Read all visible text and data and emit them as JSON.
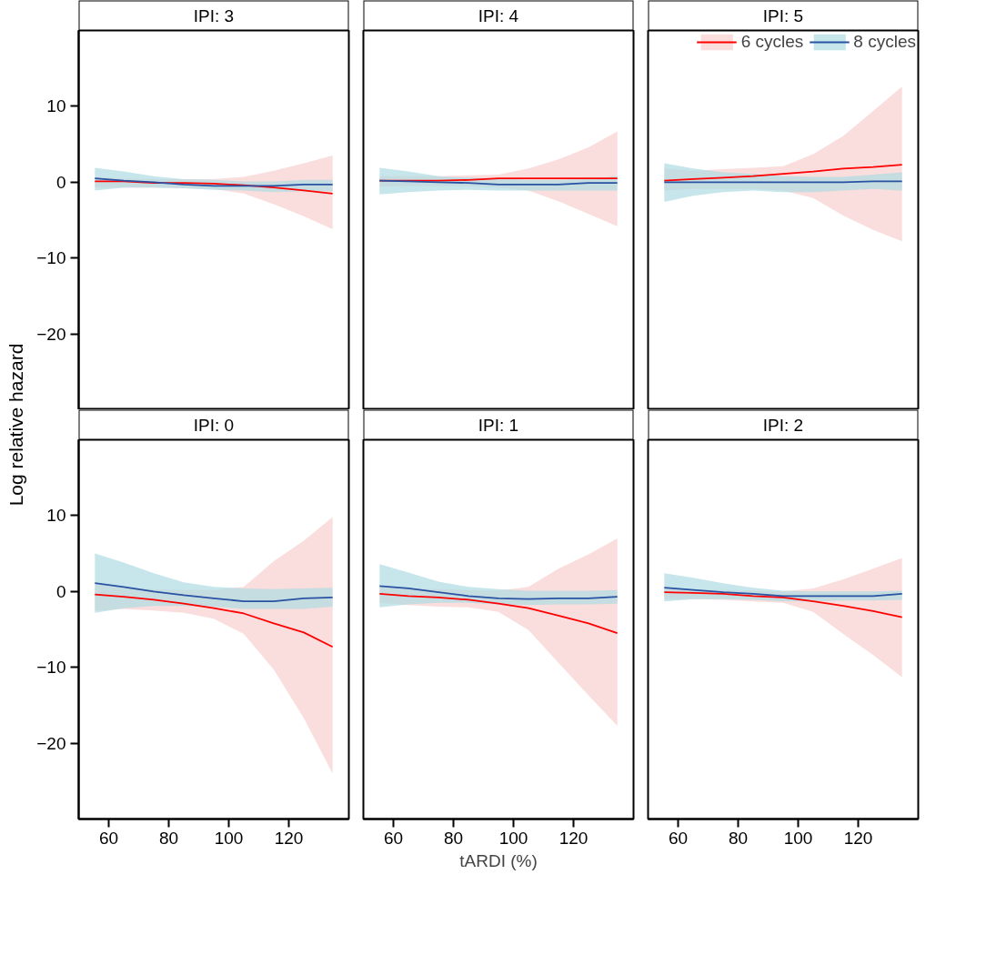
{
  "chart_data": [
    {
      "type": "line",
      "title": "IPI: 3",
      "ylabel": "Log relative hazard",
      "tick_labels": "y",
      "x": [
        55.4,
        65,
        75,
        85,
        95,
        105,
        115,
        125,
        134.6
      ],
      "xlim": [
        50,
        140
      ],
      "xticks": [
        60,
        80,
        100,
        120
      ],
      "ylim": [
        -30,
        20
      ],
      "yticks": [
        -20,
        -10,
        0,
        10
      ],
      "series": [
        {
          "color": "#ff0000",
          "values": [
            0.1,
            0.1,
            -0.1,
            -0.1,
            -0.2,
            -0.4,
            -0.7,
            -1.1,
            -1.5
          ],
          "lower": [
            -0.7,
            -0.7,
            -0.7,
            -0.8,
            -0.9,
            -1.5,
            -2.9,
            -4.5,
            -6.2
          ],
          "upper": [
            0.7,
            0.5,
            0.4,
            0.4,
            0.4,
            0.7,
            1.5,
            2.5,
            3.5
          ]
        },
        {
          "color": "#2952a3",
          "values": [
            0.5,
            0.2,
            0,
            -0.3,
            -0.5,
            -0.5,
            -0.5,
            -0.3,
            -0.3
          ],
          "lower": [
            -1.1,
            -0.7,
            -0.7,
            -0.8,
            -1.0,
            -1.1,
            -1.3,
            -1.2,
            -1.2
          ],
          "upper": [
            1.9,
            1.4,
            0.8,
            0.4,
            0.3,
            0.1,
            0.1,
            0.3,
            0.3
          ]
        }
      ]
    },
    {
      "type": "line",
      "title": "IPI: 4",
      "tick_labels": false,
      "x": [
        55.4,
        65,
        75,
        85,
        95,
        105,
        115,
        125,
        134.6
      ],
      "xlim": [
        50,
        140
      ],
      "xticks": [
        60,
        80,
        100,
        120
      ],
      "ylim": [
        -30,
        20
      ],
      "yticks": [
        -20,
        -10,
        0,
        10
      ],
      "series": [
        {
          "color": "#ff0000",
          "values": [
            0.2,
            0.2,
            0.2,
            0.3,
            0.5,
            0.5,
            0.5,
            0.5,
            0.5
          ],
          "lower": [
            -0.6,
            -0.5,
            -0.5,
            -0.5,
            -0.7,
            -1.1,
            -2.5,
            -4.2,
            -5.8
          ],
          "upper": [
            0.8,
            0.8,
            0.8,
            0.9,
            1.0,
            1.8,
            3.0,
            4.6,
            6.7
          ]
        },
        {
          "color": "#2952a3",
          "values": [
            0.2,
            0.1,
            0,
            -0.1,
            -0.3,
            -0.3,
            -0.3,
            -0.1,
            -0.1
          ],
          "lower": [
            -1.6,
            -1.3,
            -1.1,
            -1.0,
            -1.1,
            -1.1,
            -1.1,
            -1.1,
            -1.1
          ],
          "upper": [
            1.9,
            1.4,
            0.8,
            0.6,
            0.5,
            0.3,
            0.3,
            0.4,
            0.8
          ]
        }
      ]
    },
    {
      "type": "line",
      "title": "IPI: 5",
      "tick_labels": false,
      "legend": "top right",
      "x": [
        55.4,
        65,
        75,
        85,
        95,
        105,
        115,
        125,
        134.6
      ],
      "xlim": [
        50,
        140
      ],
      "xticks": [
        60,
        80,
        100,
        120
      ],
      "ylim": [
        -30,
        20
      ],
      "yticks": [
        -20,
        -10,
        0,
        10
      ],
      "series": [
        {
          "name": "6 cycles",
          "color": "#ff0000",
          "values": [
            0.2,
            0.4,
            0.6,
            0.8,
            1.1,
            1.4,
            1.8,
            2.0,
            2.3
          ],
          "lower": [
            -1.1,
            -0.9,
            -0.9,
            -0.9,
            -1.1,
            -2.1,
            -4.4,
            -6.3,
            -7.8
          ],
          "upper": [
            1.8,
            1.5,
            1.7,
            1.9,
            2.1,
            3.7,
            6.1,
            9.4,
            12.6
          ]
        },
        {
          "name": "8 cycles",
          "color": "#2952a3",
          "values": [
            0,
            0,
            0,
            0,
            0,
            0,
            0,
            0.1,
            0.1
          ],
          "lower": [
            -2.6,
            -1.8,
            -1.3,
            -1.1,
            -1.3,
            -1.3,
            -1.1,
            -0.9,
            -1.1
          ],
          "upper": [
            2.5,
            1.8,
            1.3,
            1.1,
            0.8,
            0.7,
            0.7,
            1.0,
            1.3
          ]
        }
      ]
    },
    {
      "type": "line",
      "title": "IPI: 0",
      "x": [
        55.4,
        65,
        75,
        85,
        95,
        105,
        115,
        125,
        134.6
      ],
      "xlim": [
        50,
        140
      ],
      "xticks": [
        60,
        80,
        100,
        120
      ],
      "ylim": [
        -30,
        20
      ],
      "yticks": [
        -20,
        -10,
        0,
        10
      ],
      "series": [
        {
          "color": "#ff0000",
          "values": [
            -0.4,
            -0.7,
            -1.1,
            -1.6,
            -2.2,
            -2.9,
            -4.2,
            -5.4,
            -7.3
          ],
          "lower": [
            -2.5,
            -2.3,
            -2.5,
            -2.8,
            -3.6,
            -5.6,
            -10.3,
            -16.7,
            -24.0
          ],
          "upper": [
            1.0,
            0.5,
            0.3,
            0.2,
            0.2,
            0.6,
            4.0,
            6.7,
            9.8
          ]
        },
        {
          "color": "#2952a3",
          "values": [
            1.1,
            0.6,
            0,
            -0.5,
            -0.9,
            -1.3,
            -1.3,
            -0.9,
            -0.8
          ],
          "lower": [
            -2.8,
            -2.2,
            -1.9,
            -1.9,
            -2.0,
            -2.3,
            -2.3,
            -2.3,
            -2.0
          ],
          "upper": [
            5.0,
            3.8,
            2.4,
            1.2,
            0.6,
            0.4,
            0.3,
            0.4,
            0.5
          ]
        }
      ]
    },
    {
      "type": "line",
      "title": "IPI: 1",
      "xlabel": "tARDI (%)",
      "tick_labels": "x",
      "x": [
        55.4,
        65,
        75,
        85,
        95,
        105,
        115,
        125,
        134.6
      ],
      "xlim": [
        50,
        140
      ],
      "xticks": [
        60,
        80,
        100,
        120
      ],
      "ylim": [
        -30,
        20
      ],
      "yticks": [
        -20,
        -10,
        0,
        10
      ],
      "series": [
        {
          "color": "#ff0000",
          "values": [
            -0.3,
            -0.6,
            -0.8,
            -1.1,
            -1.6,
            -2.2,
            -3.2,
            -4.2,
            -5.5
          ],
          "lower": [
            -1.5,
            -1.8,
            -2.0,
            -2.1,
            -2.7,
            -5.1,
            -9.4,
            -13.7,
            -17.7
          ],
          "upper": [
            0.6,
            0.4,
            0.3,
            0.2,
            0.1,
            0.6,
            3.0,
            4.9,
            7.0
          ]
        },
        {
          "color": "#2952a3",
          "values": [
            0.7,
            0.4,
            -0.1,
            -0.6,
            -0.9,
            -1.0,
            -0.9,
            -0.9,
            -0.7
          ],
          "lower": [
            -2.1,
            -1.7,
            -1.5,
            -1.5,
            -1.7,
            -1.8,
            -1.7,
            -1.7,
            -1.6
          ],
          "upper": [
            3.6,
            2.5,
            1.3,
            0.6,
            0.3,
            0.1,
            0.1,
            0.1,
            0.2
          ]
        }
      ]
    },
    {
      "type": "line",
      "title": "IPI: 2",
      "tick_labels": "x",
      "x": [
        55.4,
        65,
        75,
        85,
        95,
        105,
        115,
        125,
        134.6
      ],
      "xlim": [
        50,
        140
      ],
      "xticks": [
        60,
        80,
        100,
        120
      ],
      "ylim": [
        -30,
        20
      ],
      "yticks": [
        -20,
        -10,
        0,
        10
      ],
      "series": [
        {
          "color": "#ff0000",
          "values": [
            -0.1,
            -0.2,
            -0.3,
            -0.6,
            -0.8,
            -1.3,
            -1.9,
            -2.6,
            -3.4
          ],
          "lower": [
            -1.0,
            -1.0,
            -1.1,
            -1.3,
            -1.5,
            -2.7,
            -5.6,
            -8.4,
            -11.3
          ],
          "upper": [
            0.4,
            0.3,
            0.2,
            0.1,
            0,
            0.4,
            1.6,
            3.0,
            4.4
          ]
        },
        {
          "color": "#2952a3",
          "values": [
            0.5,
            0.2,
            -0.1,
            -0.3,
            -0.6,
            -0.6,
            -0.6,
            -0.6,
            -0.3
          ],
          "lower": [
            -1.3,
            -1.0,
            -1.0,
            -1.1,
            -1.3,
            -1.3,
            -1.2,
            -1.2,
            -1.1
          ],
          "upper": [
            2.4,
            1.8,
            1.1,
            0.5,
            0.1,
            0,
            0,
            0,
            0.1
          ]
        }
      ]
    }
  ]
}
